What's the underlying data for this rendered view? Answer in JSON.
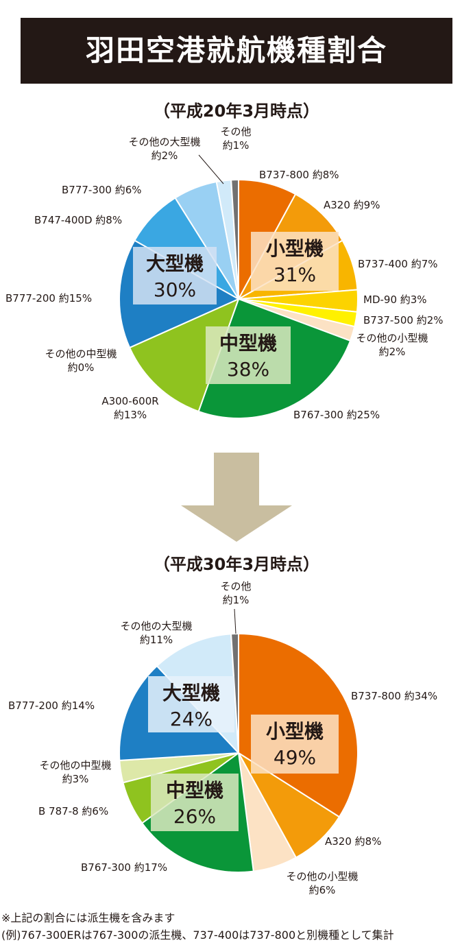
{
  "title": "羽田空港就航機種割合",
  "footnotes": [
    "※上記の割合には派生機を含みます",
    "(例)767-300ERは767-300の派生機、737-400は737-800と別機種として集計"
  ],
  "chart_data": [
    {
      "type": "pie",
      "title": "（平成20年3月時点）",
      "slices": [
        {
          "label": "B737-800 約8%",
          "value": 8,
          "color": "#eb6d00"
        },
        {
          "label": "A320 約9%",
          "value": 9,
          "color": "#f39b0a"
        },
        {
          "label": "B737-400 約7%",
          "value": 7,
          "color": "#f8b500"
        },
        {
          "label": "MD-90 約3%",
          "value": 3,
          "color": "#fcd300"
        },
        {
          "label": "B737-500 約2%",
          "value": 2,
          "color": "#fff100"
        },
        {
          "label": "その他の小型機\n約2%",
          "value": 2,
          "color": "#fce2c4"
        },
        {
          "label": "B767-300 約25%",
          "value": 25,
          "color": "#0a9639"
        },
        {
          "label": "A300-600R\n約13%",
          "value": 13,
          "color": "#8fc31f"
        },
        {
          "label": "その他の中型機\n約0%",
          "value": 0,
          "color": "#dde8a8"
        },
        {
          "label": "B777-200 約15%",
          "value": 15,
          "color": "#1e7fc4"
        },
        {
          "label": "B747-400D 約8%",
          "value": 8,
          "color": "#3aa7e2"
        },
        {
          "label": "B777-300 約6%",
          "value": 6,
          "color": "#99d0f3"
        },
        {
          "label": "その他の大型機\n約2%",
          "value": 2,
          "color": "#d1eaf9"
        },
        {
          "label": "その他\n約1%",
          "value": 1,
          "color": "#727171"
        }
      ],
      "groups": [
        {
          "name": "小型機",
          "pct": "31%",
          "color": "#fce2c4"
        },
        {
          "name": "中型機",
          "pct": "38%",
          "color": "#dbe9c0"
        },
        {
          "name": "大型機",
          "pct": "30%",
          "color": "#d4e2f3"
        }
      ]
    },
    {
      "type": "pie",
      "title": "（平成30年3月時点）",
      "slices": [
        {
          "label": "B737-800 約34%",
          "value": 34,
          "color": "#eb6d00"
        },
        {
          "label": "A320 約8%",
          "value": 8,
          "color": "#f39b0a"
        },
        {
          "label": "その他の小型機\n約6%",
          "value": 6,
          "color": "#fce2c4"
        },
        {
          "label": "B767-300 約17%",
          "value": 17,
          "color": "#0a9639"
        },
        {
          "label": "B 787-8 約6%",
          "value": 6,
          "color": "#8fc31f"
        },
        {
          "label": "その他の中型機\n約3%",
          "value": 3,
          "color": "#dde8a8"
        },
        {
          "label": "B777-200 約14%",
          "value": 14,
          "color": "#1e7fc4"
        },
        {
          "label": "その他の大型機\n約11%",
          "value": 11,
          "color": "#d1eaf9"
        },
        {
          "label": "その他\n約1%",
          "value": 1,
          "color": "#727171"
        }
      ],
      "groups": [
        {
          "name": "小型機",
          "pct": "49%",
          "color": "#fce2c4"
        },
        {
          "name": "中型機",
          "pct": "26%",
          "color": "#dbe9c0"
        },
        {
          "name": "大型機",
          "pct": "24%",
          "color": "#e8f2fb"
        }
      ]
    }
  ]
}
